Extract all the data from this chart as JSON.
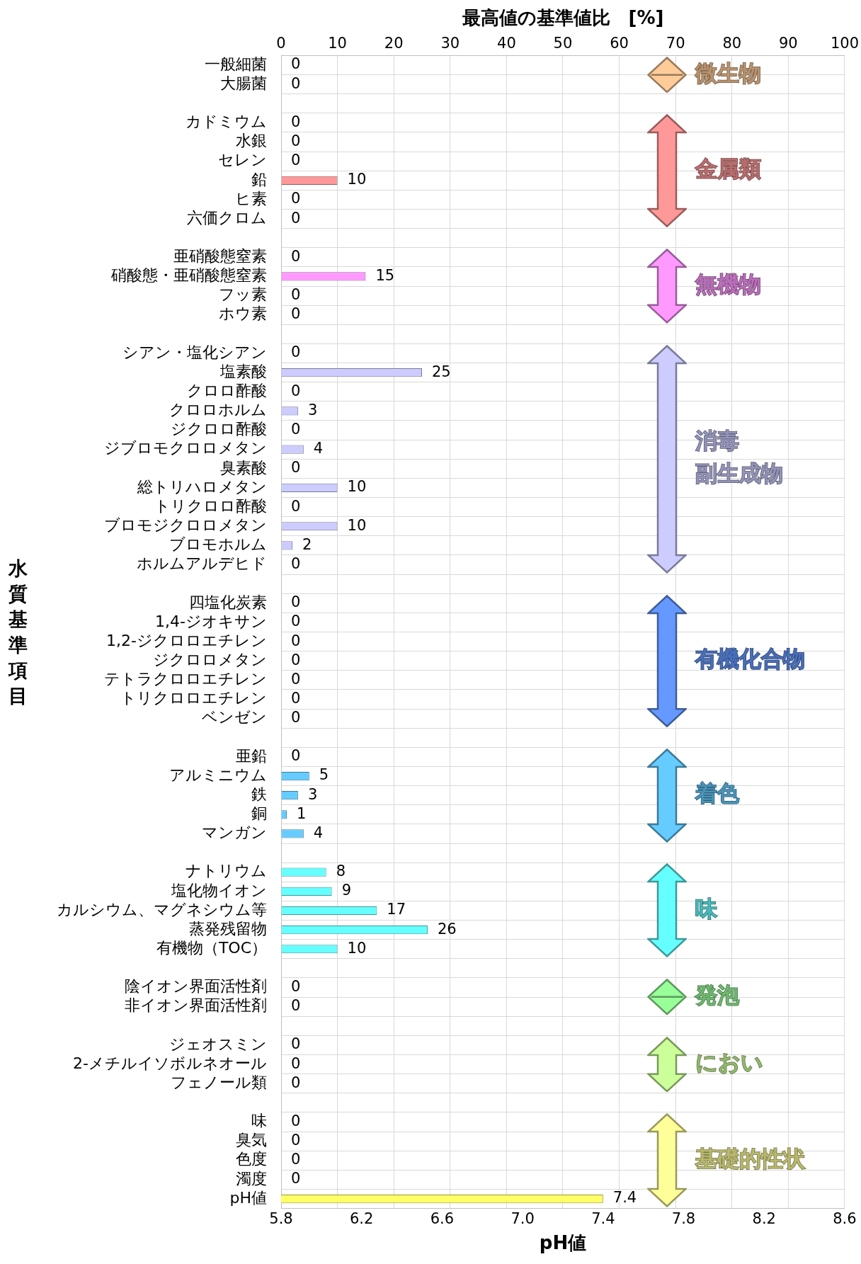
{
  "chart_data": {
    "type": "bar",
    "orientation": "horizontal",
    "xlabel": "pH値",
    "x2label": "最高値の基準値比　[%]",
    "ylabel": "水質基準項目",
    "categories": [
      "一般細菌",
      "大腸菌",
      null,
      "カドミウム",
      "水銀",
      "セレン",
      "鉛",
      "ヒ素",
      "六価クロム",
      null,
      "亜硝酸態窒素",
      "硝酸態・亜硝酸態窒素",
      "フッ素",
      "ホウ素",
      null,
      "シアン・塩化シアン",
      "塩素酸",
      "クロロ酢酸",
      "クロロホルム",
      "ジクロロ酢酸",
      "ジブロモクロロメタン",
      "臭素酸",
      "総トリハロメタン",
      "トリクロロ酢酸",
      "ブロモジクロロメタン",
      "ブロモホルム",
      "ホルムアルデヒド",
      null,
      "四塩化炭素",
      "1,4-ジオキサン",
      "1,2-ジクロロエチレン",
      "ジクロロメタン",
      "テトラクロロエチレン",
      "トリクロロエチレン",
      "ベンゼン",
      null,
      "亜鉛",
      "アルミニウム",
      "鉄",
      "銅",
      "マンガン",
      null,
      "ナトリウム",
      "塩化物イオン",
      "カルシウム、マグネシウム等",
      "蒸発残留物",
      "有機物（TOC）",
      null,
      "陰イオン界面活性剤",
      "非イオン界面活性剤",
      null,
      "ジェオスミン",
      "2-メチルイソボルネオール",
      "フェノール類",
      null,
      "味",
      "臭気",
      "色度",
      "濁度",
      "pH値"
    ],
    "series": [
      {
        "axis": "x2",
        "values": [
          0,
          0,
          null,
          0,
          0,
          0,
          10,
          0,
          0,
          null,
          0,
          15,
          0,
          0,
          null,
          0,
          25,
          0,
          3,
          0,
          4,
          0,
          10,
          0,
          10,
          2,
          0,
          null,
          0,
          0,
          0,
          0,
          0,
          0,
          0,
          null,
          0,
          5,
          3,
          1,
          4,
          null,
          8,
          9,
          17,
          26,
          10,
          null,
          0,
          0,
          null,
          0,
          0,
          0,
          null,
          0,
          0,
          0,
          0,
          null
        ],
        "colors": [
          "#ffcc99",
          "#ffcc99",
          null,
          "#ff9999",
          "#ff9999",
          "#ff9999",
          "#ff9999",
          "#ff9999",
          "#ff9999",
          null,
          "#ff99ff",
          "#ff99ff",
          "#ff99ff",
          "#ff99ff",
          null,
          "#ccccff",
          "#ccccff",
          "#ccccff",
          "#ccccff",
          "#ccccff",
          "#ccccff",
          "#ccccff",
          "#ccccff",
          "#ccccff",
          "#ccccff",
          "#ccccff",
          "#ccccff",
          null,
          "#6699ff",
          "#6699ff",
          "#6699ff",
          "#6699ff",
          "#6699ff",
          "#6699ff",
          "#6699ff",
          null,
          "#66ccff",
          "#66ccff",
          "#66ccff",
          "#66ccff",
          "#66ccff",
          null,
          "#66ffff",
          "#66ffff",
          "#66ffff",
          "#66ffff",
          "#66ffff",
          null,
          "#99ff99",
          "#99ff99",
          null,
          "#ccff99",
          "#ccff99",
          "#ccff99",
          null,
          "#ffff99",
          "#ffff99",
          "#ffff99",
          "#ffff99",
          "#ffff99"
        ]
      },
      {
        "color": "#ffff66",
        "values": [
          null,
          null,
          null,
          null,
          null,
          null,
          null,
          null,
          null,
          null,
          null,
          null,
          null,
          null,
          null,
          null,
          null,
          null,
          null,
          null,
          null,
          null,
          null,
          null,
          null,
          null,
          null,
          null,
          null,
          null,
          null,
          null,
          null,
          null,
          null,
          null,
          null,
          null,
          null,
          null,
          null,
          null,
          null,
          null,
          null,
          null,
          null,
          null,
          null,
          null,
          null,
          null,
          null,
          null,
          null,
          null,
          null,
          null,
          null,
          7.4
        ]
      }
    ],
    "xlim": [
      5.8,
      8.6
    ],
    "xticks": [
      5.8,
      6.2,
      6.6,
      {
        "value": 7,
        "label": "7.0"
      },
      7.4,
      7.8,
      8.2,
      8.6
    ],
    "x2lim": [
      0,
      100
    ],
    "x2ticks": [
      0,
      10,
      20,
      30,
      40,
      50,
      60,
      70,
      80,
      90,
      100
    ],
    "annotations": [
      "微生物",
      "金属類",
      "無機物",
      "消毒副生成物",
      "有機化合物",
      "着色",
      "味",
      "発泡",
      "におい",
      "基礎的性状"
    ],
    "data_labels": true,
    "grid": true,
    "legend": false
  }
}
